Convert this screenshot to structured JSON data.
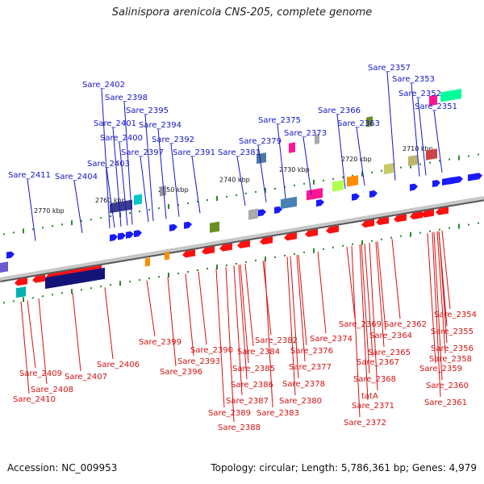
{
  "title": "Salinispora arenicola CNS-205, complete genome",
  "footer": {
    "accession": "Accession: NC_009953",
    "summary": "Topology: circular; Length: 5,786,361 bp; Genes: 4,979"
  },
  "colors": {
    "forward_label": "#1515c8",
    "reverse_label": "#d41010",
    "backbone": "#8a8a8a",
    "tick": "#2a8a2a",
    "arrow_forward": "#1a1aff",
    "arrow_reverse": "#ff1010"
  },
  "axis_ticks": [
    "2770 kbp",
    "2760 kbp",
    "2750 kbp",
    "2740 kbp",
    "2730 kbp",
    "2720 kbp",
    "2710 kbp"
  ],
  "forward_labels": [
    "Sare_2411",
    "Sare_2404",
    "Sare_2403",
    "Sare_2400",
    "Sare_2401",
    "Sare_2398",
    "Sare_2402",
    "Sare_2397",
    "Sare_2395",
    "Sare_2394",
    "Sare_2392",
    "Sare_2391",
    "Sare_2381",
    "Sare_2379",
    "Sare_2375",
    "Sare_2373",
    "Sare_2366",
    "Sare_2363",
    "Sare_2357",
    "Sare_2353",
    "Sare_2352",
    "Sare_2351"
  ],
  "reverse_labels": [
    "Sare_2409",
    "Sare_2410",
    "Sare_2408",
    "Sare_2407",
    "Sare_2406",
    "Sare_2399",
    "Sare_2396",
    "Sare_2393",
    "Sare_2390",
    "Sare_2384",
    "Sare_2385",
    "Sare_2386",
    "Sare_2387",
    "Sare_2389",
    "Sare_2388",
    "Sare_2382",
    "Sare_2383",
    "Sare_2376",
    "Sare_2377",
    "Sare_2378",
    "Sare_2380",
    "Sare_2374",
    "Sare_2369",
    "Sare_2367",
    "Sare_2364",
    "Sare_2365",
    "Sare_2368",
    "tatA",
    "Sare_2371",
    "Sare_2372",
    "Sare_2362",
    "Sare_2356",
    "Sare_2358",
    "Sare_2359",
    "Sare_2360",
    "Sare_2361",
    "Sare_2354",
    "Sare_2355"
  ]
}
